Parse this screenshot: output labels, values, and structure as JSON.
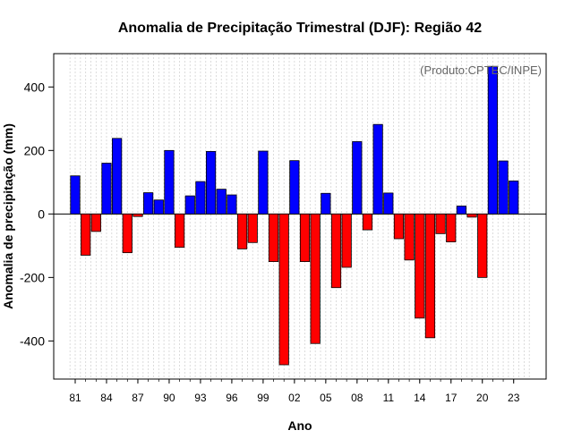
{
  "chart_data": {
    "type": "bar",
    "title": "Anomalia de Precipitação Trimestral (DJF): Região 42",
    "xlabel": "Ano",
    "ylabel": "Anomalia de precipitação (mm)",
    "credit": "(Produto:CPTEC/INPE)",
    "ylim": [
      -520,
      505
    ],
    "grid": true,
    "xtick_labels": [
      "81",
      "84",
      "87",
      "90",
      "93",
      "96",
      "99",
      "02",
      "05",
      "08",
      "11",
      "14",
      "17",
      "20",
      "23"
    ],
    "ytick_values": [
      -400,
      -200,
      0,
      200,
      400
    ],
    "ytick_labels": [
      "-400",
      "-200",
      "0",
      "200",
      "400"
    ],
    "categories": [
      "1981",
      "1982",
      "1983",
      "1984",
      "1985",
      "1986",
      "1987",
      "1988",
      "1989",
      "1990",
      "1991",
      "1992",
      "1993",
      "1994",
      "1995",
      "1996",
      "1997",
      "1998",
      "1999",
      "2000",
      "2001",
      "2002",
      "2003",
      "2004",
      "2005",
      "2006",
      "2007",
      "2008",
      "2009",
      "2010",
      "2011",
      "2012",
      "2013",
      "2014",
      "2015",
      "2016",
      "2017",
      "2018",
      "2019",
      "2020",
      "2021",
      "2022",
      "2023"
    ],
    "values": [
      120,
      -130,
      -55,
      160,
      238,
      -122,
      -8,
      67,
      44,
      200,
      -105,
      57,
      102,
      197,
      78,
      60,
      -110,
      -90,
      198,
      -150,
      -475,
      168,
      -150,
      -408,
      65,
      -232,
      -168,
      228,
      -50,
      282,
      66,
      -78,
      -145,
      -328,
      -390,
      -62,
      -88,
      25,
      -10,
      -200,
      465,
      167,
      104
    ],
    "colors": {
      "positive": "#0000ff",
      "negative": "#ff0000",
      "zero_line": "#000000",
      "grid": "#d3d3d3"
    }
  }
}
